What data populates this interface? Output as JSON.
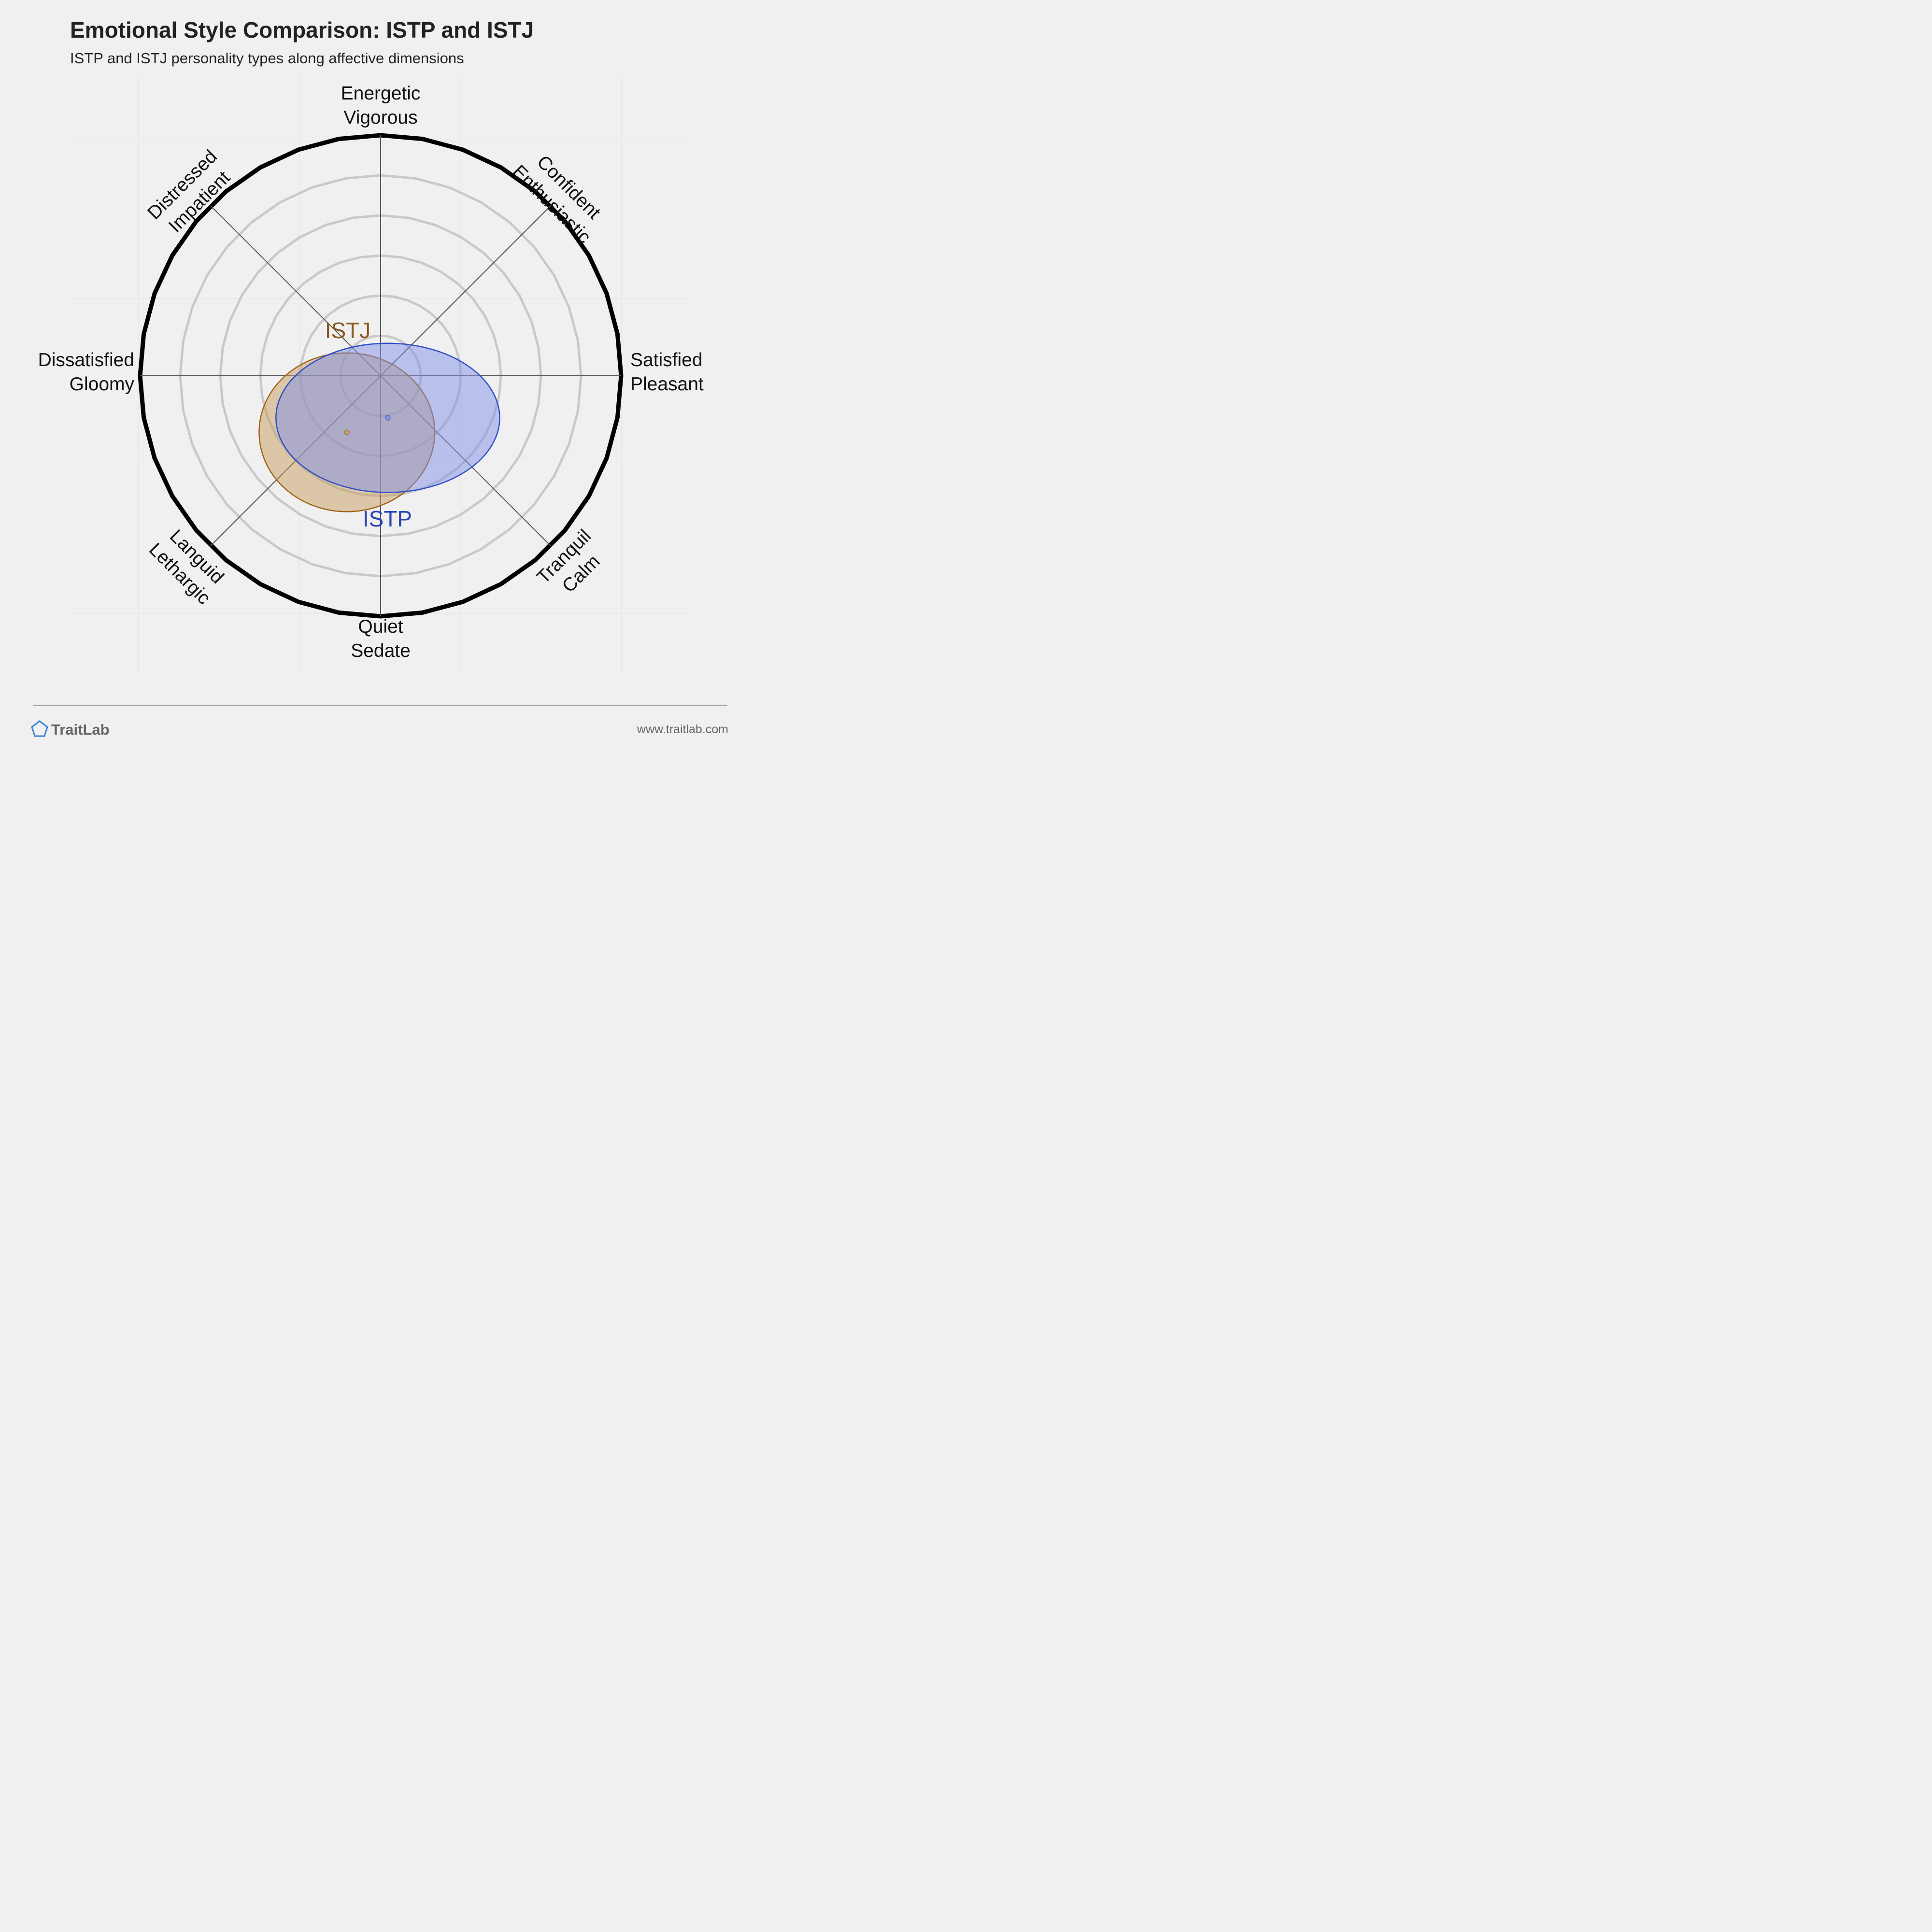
{
  "title": "Emotional Style Comparison: ISTP and ISTJ",
  "subtitle": "ISTP and ISTJ personality types along affective dimensions",
  "chart_data": {
    "type": "circumplex",
    "axes": [
      {
        "id": "energetic",
        "lines": [
          "Energetic",
          "Vigorous"
        ]
      },
      {
        "id": "confident",
        "lines": [
          "Confident",
          "Enthusiastic"
        ]
      },
      {
        "id": "satisfied",
        "lines": [
          "Satisfied",
          "Pleasant"
        ]
      },
      {
        "id": "tranquil",
        "lines": [
          "Tranquil",
          "Calm"
        ]
      },
      {
        "id": "quiet",
        "lines": [
          "Quiet",
          "Sedate"
        ]
      },
      {
        "id": "languid",
        "lines": [
          "Languid",
          "Lethargic"
        ]
      },
      {
        "id": "dissatisfied",
        "lines": [
          "Dissatisfied",
          "Gloomy"
        ]
      },
      {
        "id": "distressed",
        "lines": [
          "Distressed",
          "Impatient"
        ]
      }
    ],
    "x_axis": {
      "negative": "Dissatisfied / Gloomy",
      "positive": "Satisfied / Pleasant",
      "range": [
        -1,
        1
      ]
    },
    "y_axis": {
      "negative": "Quiet / Sedate",
      "positive": "Energetic / Vigorous",
      "range": [
        -1,
        1
      ]
    },
    "rings": 6,
    "series": [
      {
        "name": "ISTJ",
        "x": -0.14,
        "y": -0.235,
        "spread_x": 0.365,
        "spread_y": 0.33,
        "color": "#a0651a",
        "fill": "#c89b60",
        "label_color": "#8b5a1e"
      },
      {
        "name": "ISTP",
        "x": 0.03,
        "y": -0.175,
        "spread_x": 0.465,
        "spread_y": 0.31,
        "color": "#2f4fc8",
        "fill": "#7f8fe6",
        "label_color": "#2a44b8"
      }
    ]
  },
  "footer": {
    "brand": "TraitLab",
    "url": "www.traitlab.com"
  },
  "colors": {
    "background": "#f0f0f0",
    "outer_ring": "#000000",
    "inner_rings": "#c9c9c9",
    "axis_lines": "#555555",
    "logo": "#3a82d6"
  }
}
